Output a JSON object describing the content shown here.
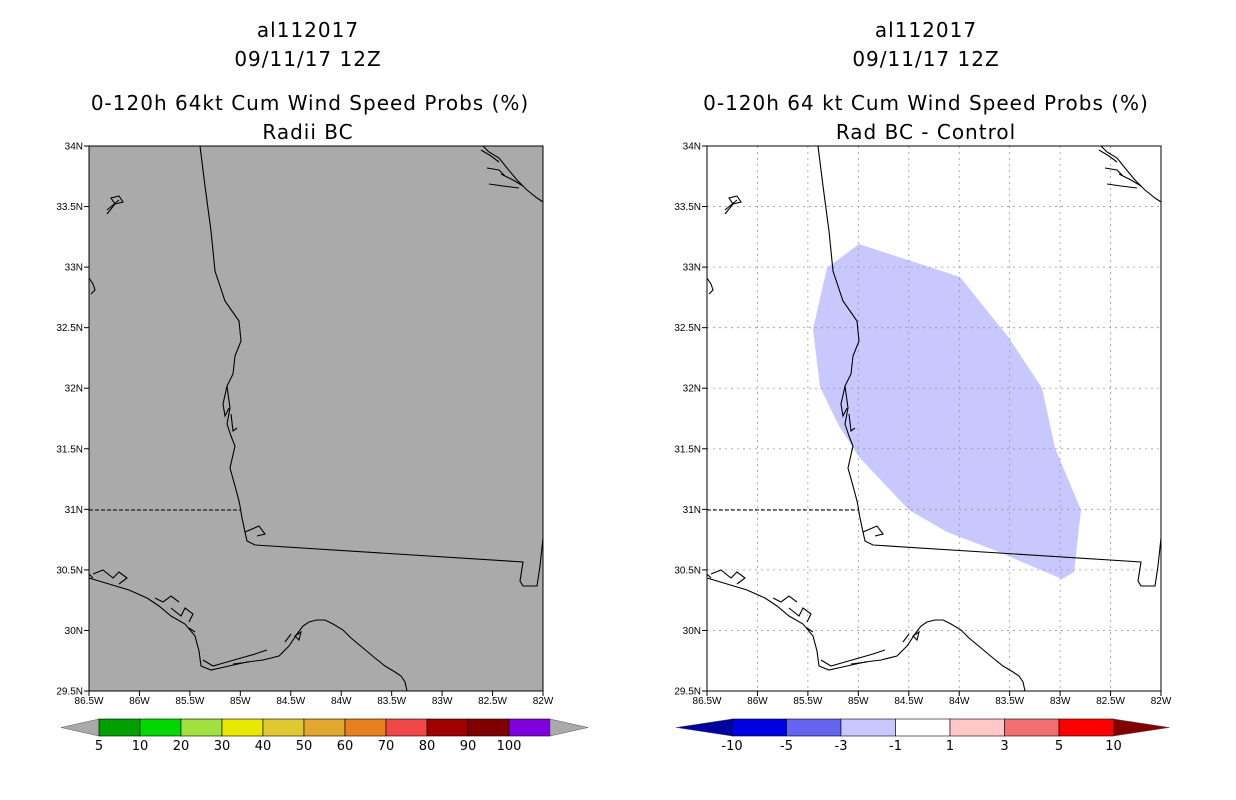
{
  "left_panel": {
    "storm_id": "al112017",
    "datetime": "09/11/17 12Z",
    "title": "0-120h 64kt Cum Wind Speed Probs (%)",
    "subtitle": "Radii BC",
    "fill_color": "#aaaaaa",
    "colorbar": {
      "labels": [
        "5",
        "10",
        "20",
        "30",
        "40",
        "50",
        "60",
        "70",
        "80",
        "90",
        "100"
      ],
      "colors": [
        "#00a000",
        "#00d800",
        "#a0e040",
        "#e8e800",
        "#e0c830",
        "#e0a830",
        "#e88020",
        "#f04848",
        "#a00000",
        "#800000",
        "#8000e0"
      ],
      "end_colors": [
        "#aaaaaa",
        "#aaaaaa"
      ]
    }
  },
  "right_panel": {
    "storm_id": "al112017",
    "datetime": "09/11/17 12Z",
    "title": "0-120h 64 kt Cum Wind Speed Probs (%)",
    "subtitle": "Rad BC - Control",
    "shaded_region_color": "#c8c8ff",
    "colorbar": {
      "labels": [
        "-10",
        "-5",
        "-3",
        "-1",
        "1",
        "3",
        "5",
        "10"
      ],
      "colors": [
        "#0000e0",
        "#6464f0",
        "#c8c8ff",
        "#ffffff",
        "#ffc8c8",
        "#f07070",
        "#ff0000"
      ],
      "end_colors": [
        "#0000a0",
        "#800000"
      ]
    }
  },
  "map": {
    "lat_labels": [
      "34N",
      "33.5N",
      "33N",
      "32.5N",
      "32N",
      "31.5N",
      "31N",
      "30.5N",
      "30N",
      "29.5N"
    ],
    "lon_labels": [
      "86.5W",
      "86W",
      "85.5W",
      "85W",
      "84.5W",
      "84W",
      "83.5W",
      "83W",
      "82.5W",
      "82W"
    ],
    "lat_range": [
      29.5,
      34.0
    ],
    "lon_range": [
      -86.5,
      -82.0
    ]
  }
}
